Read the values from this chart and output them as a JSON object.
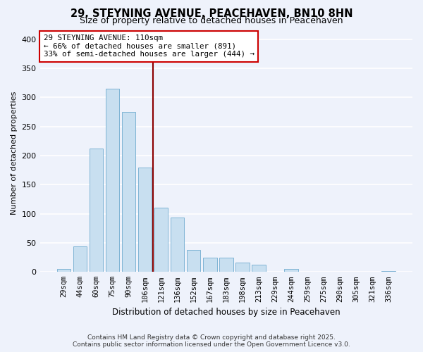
{
  "title": "29, STEYNING AVENUE, PEACEHAVEN, BN10 8HN",
  "subtitle": "Size of property relative to detached houses in Peacehaven",
  "xlabel": "Distribution of detached houses by size in Peacehaven",
  "ylabel": "Number of detached properties",
  "bar_labels": [
    "29sqm",
    "44sqm",
    "60sqm",
    "75sqm",
    "90sqm",
    "106sqm",
    "121sqm",
    "136sqm",
    "152sqm",
    "167sqm",
    "183sqm",
    "198sqm",
    "213sqm",
    "229sqm",
    "244sqm",
    "259sqm",
    "275sqm",
    "290sqm",
    "305sqm",
    "321sqm",
    "336sqm"
  ],
  "bar_values": [
    5,
    44,
    212,
    315,
    275,
    180,
    110,
    93,
    38,
    25,
    24,
    16,
    13,
    0,
    5,
    0,
    0,
    0,
    0,
    0,
    2
  ],
  "bar_color": "#c8dff0",
  "bar_edge_color": "#7fb4d4",
  "vline_x": 5.5,
  "vline_color": "#8b0000",
  "annotation_title": "29 STEYNING AVENUE: 110sqm",
  "annotation_line1": "← 66% of detached houses are smaller (891)",
  "annotation_line2": "33% of semi-detached houses are larger (444) →",
  "annotation_box_color": "white",
  "annotation_box_edge": "#cc0000",
  "ylim": [
    0,
    410
  ],
  "yticks": [
    0,
    50,
    100,
    150,
    200,
    250,
    300,
    350,
    400
  ],
  "footnote1": "Contains HM Land Registry data © Crown copyright and database right 2025.",
  "footnote2": "Contains public sector information licensed under the Open Government Licence v3.0.",
  "background_color": "#eef2fb",
  "grid_color": "white",
  "title_fontsize": 10.5,
  "subtitle_fontsize": 9,
  "ylabel_fontsize": 8,
  "xlabel_fontsize": 8.5,
  "tick_fontsize": 7.5,
  "annotation_fontsize": 7.8,
  "footnote_fontsize": 6.5
}
